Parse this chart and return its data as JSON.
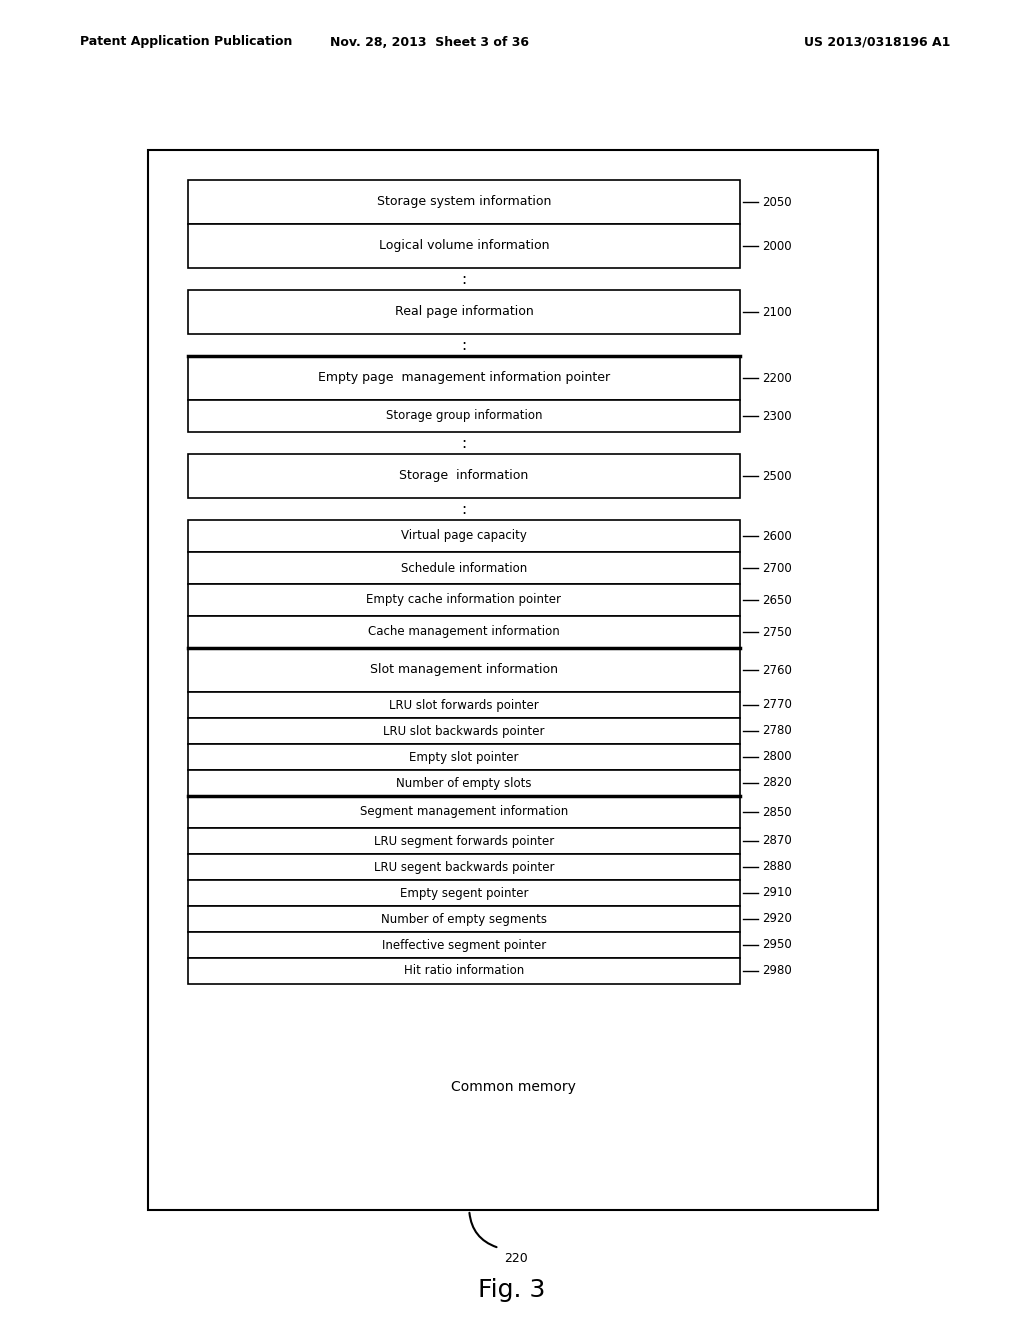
{
  "header_left": "Patent Application Publication",
  "header_mid": "Nov. 28, 2013  Sheet 3 of 36",
  "header_right": "US 2013/0318196 A1",
  "fig_label": "Fig. 3",
  "common_memory_label": "Common memory",
  "arrow_label": "220",
  "rows": [
    {
      "label": "Storage system information",
      "ref": "2050",
      "type": "tall",
      "dots_below": false,
      "thick_top": false
    },
    {
      "label": "Logical volume information",
      "ref": "2000",
      "type": "tall",
      "dots_below": true,
      "thick_top": false
    },
    {
      "label": "Real page information",
      "ref": "2100",
      "type": "tall",
      "dots_below": true,
      "thick_top": false
    },
    {
      "label": "Empty page  management information pointer",
      "ref": "2200",
      "type": "tall",
      "dots_below": false,
      "thick_top": true
    },
    {
      "label": "Storage group information",
      "ref": "2300",
      "type": "normal",
      "dots_below": true,
      "thick_top": false
    },
    {
      "label": "Storage  information",
      "ref": "2500",
      "type": "tall",
      "dots_below": true,
      "thick_top": false
    },
    {
      "label": "Virtual page capacity",
      "ref": "2600",
      "type": "normal",
      "dots_below": false,
      "thick_top": false
    },
    {
      "label": "Schedule information",
      "ref": "2700",
      "type": "normal",
      "dots_below": false,
      "thick_top": false
    },
    {
      "label": "Empty cache information pointer",
      "ref": "2650",
      "type": "normal",
      "dots_below": false,
      "thick_top": false
    },
    {
      "label": "Cache management information",
      "ref": "2750",
      "type": "normal",
      "dots_below": false,
      "thick_top": false
    },
    {
      "label": "Slot management information",
      "ref": "2760",
      "type": "tall",
      "dots_below": false,
      "thick_top": true
    },
    {
      "label": "LRU slot forwards pointer",
      "ref": "2770",
      "type": "small",
      "dots_below": false,
      "thick_top": false
    },
    {
      "label": "LRU slot backwards pointer",
      "ref": "2780",
      "type": "small",
      "dots_below": false,
      "thick_top": false
    },
    {
      "label": "Empty slot pointer",
      "ref": "2800",
      "type": "small",
      "dots_below": false,
      "thick_top": false
    },
    {
      "label": "Number of empty slots",
      "ref": "2820",
      "type": "small",
      "dots_below": false,
      "thick_top": false
    },
    {
      "label": "Segment management information",
      "ref": "2850",
      "type": "normal",
      "dots_below": false,
      "thick_top": true
    },
    {
      "label": "LRU segment forwards pointer",
      "ref": "2870",
      "type": "small",
      "dots_below": false,
      "thick_top": false
    },
    {
      "label": "LRU segent backwards pointer",
      "ref": "2880",
      "type": "small",
      "dots_below": false,
      "thick_top": false
    },
    {
      "label": "Empty segent pointer",
      "ref": "2910",
      "type": "small",
      "dots_below": false,
      "thick_top": false
    },
    {
      "label": "Number of empty segments",
      "ref": "2920",
      "type": "small",
      "dots_below": false,
      "thick_top": false
    },
    {
      "label": "Ineffective segment pointer",
      "ref": "2950",
      "type": "small",
      "dots_below": false,
      "thick_top": false
    },
    {
      "label": "Hit ratio information",
      "ref": "2980",
      "type": "small",
      "dots_below": false,
      "thick_top": false
    }
  ]
}
